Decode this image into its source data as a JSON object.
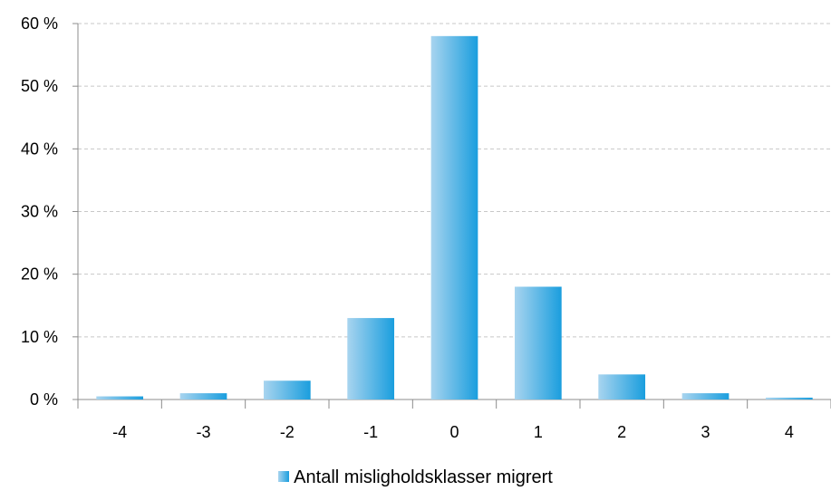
{
  "chart_data": {
    "type": "bar",
    "categories": [
      "-4",
      "-3",
      "-2",
      "-1",
      "0",
      "1",
      "2",
      "3",
      "4"
    ],
    "series": [
      {
        "name": "Antall misligholdsklasser migrert",
        "values": [
          0.5,
          1.0,
          3.0,
          13.0,
          58.0,
          18.0,
          4.0,
          1.0,
          0.3
        ]
      }
    ],
    "title": "",
    "xlabel": "",
    "ylabel": "",
    "ylim": [
      0,
      60
    ],
    "yticks": [
      0,
      10,
      20,
      30,
      40,
      50,
      60
    ],
    "ytick_labels": [
      "0 %",
      "10 %",
      "20 %",
      "30 %",
      "40 %",
      "50 %",
      "60 %"
    ],
    "grid": "horizontal dashed",
    "legend_position": "bottom",
    "colors": {
      "bar_light": "#a8d4ef",
      "bar_dark": "#1a9ede",
      "grid": "#c8c8c8",
      "axis": "#8c8c8c"
    }
  }
}
